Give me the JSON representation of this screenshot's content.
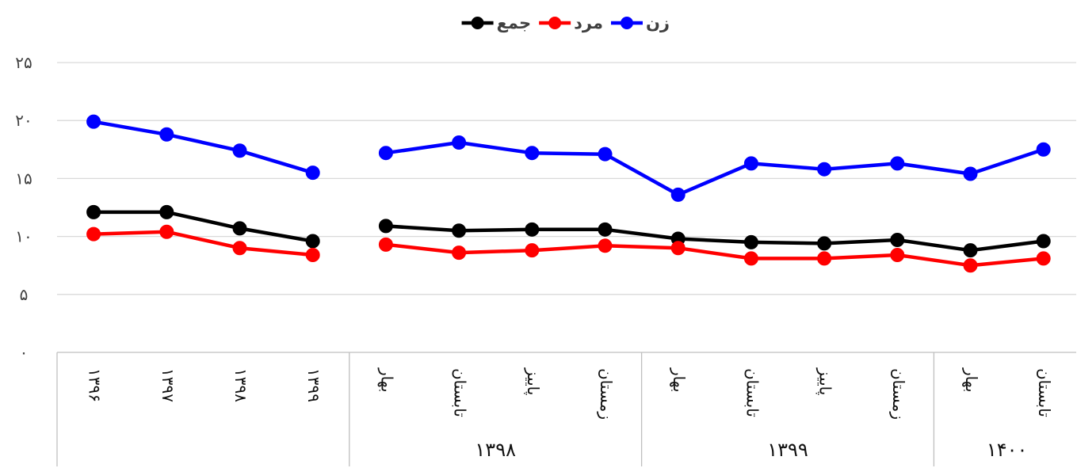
{
  "chart_data": {
    "type": "line",
    "direction": "rtl",
    "legend": {
      "position": "top"
    },
    "grid": true,
    "ylim": [
      0,
      25
    ],
    "yticks": [
      "۰",
      "۵",
      "۱۰",
      "۱۵",
      "۲۰",
      "۲۵"
    ],
    "categories": [
      "۱۳۹۶",
      "۱۳۹۷",
      "۱۳۹۸",
      "۱۳۹۹",
      "بهار",
      "تابستان",
      "پاییز",
      "زمستان",
      "بهار",
      "تابستان",
      "پاییز",
      "زمستان",
      "بهار",
      "تابستان"
    ],
    "groups": [
      {
        "label": "",
        "count": 4
      },
      {
        "label": "۱۳۹۸",
        "count": 4
      },
      {
        "label": "۱۳۹۹",
        "count": 4
      },
      {
        "label": "۱۴۰۰",
        "count": 2
      }
    ],
    "series": [
      {
        "name": "جمع",
        "color": "#000000",
        "values": [
          12.1,
          12.1,
          10.7,
          9.6,
          10.9,
          10.5,
          10.6,
          10.6,
          9.8,
          9.5,
          9.4,
          9.7,
          8.8,
          9.6
        ]
      },
      {
        "name": "مرد",
        "color": "#ff0000",
        "values": [
          10.2,
          10.4,
          9.0,
          8.4,
          9.3,
          8.6,
          8.8,
          9.2,
          9.0,
          8.1,
          8.1,
          8.4,
          7.5,
          8.1
        ]
      },
      {
        "name": "زن",
        "color": "#0000ff",
        "values": [
          19.9,
          18.8,
          17.4,
          15.5,
          17.2,
          18.1,
          17.2,
          17.1,
          13.6,
          16.3,
          15.8,
          16.3,
          15.4,
          17.5
        ]
      }
    ],
    "gap_after_index": 3
  }
}
